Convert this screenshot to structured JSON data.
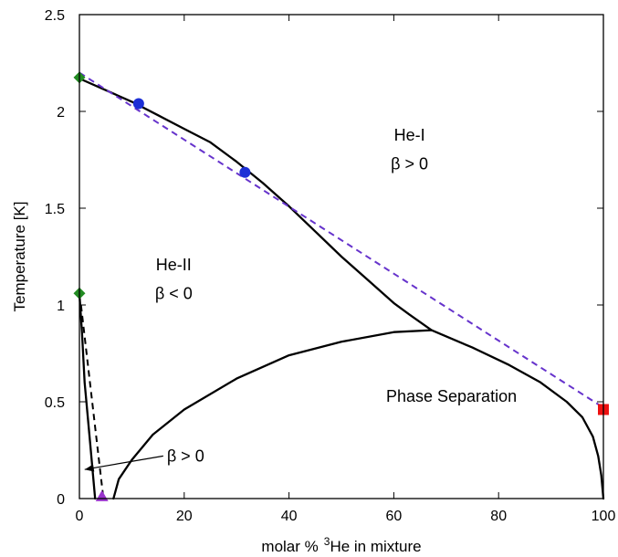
{
  "chart_data": {
    "type": "line",
    "xlabel_prefix": "molar %",
    "xlabel_sup": "3",
    "xlabel_suffix": "He in mixture",
    "ylabel": "Temperature [K]",
    "xlim": [
      0,
      100
    ],
    "ylim": [
      0,
      2.5
    ],
    "xticks": [
      0,
      20,
      40,
      60,
      80,
      100
    ],
    "yticks": [
      0,
      0.5,
      1,
      1.5,
      2,
      2.5
    ],
    "xtick_labels": [
      "0",
      "20",
      "40",
      "60",
      "80",
      "100"
    ],
    "ytick_labels": [
      "0",
      "0.5",
      "1",
      "1.5",
      "2",
      "2.5"
    ],
    "grid": false,
    "series": [
      {
        "style": "solid",
        "color": "#000000",
        "x": [
          0,
          5,
          10,
          15,
          20,
          25,
          30,
          35,
          40,
          45,
          50,
          55,
          60,
          63,
          67.2
        ],
        "y": [
          2.17,
          2.11,
          2.05,
          1.98,
          1.91,
          1.84,
          1.74,
          1.63,
          1.51,
          1.38,
          1.25,
          1.13,
          1.01,
          0.95,
          0.87
        ]
      },
      {
        "style": "solid",
        "color": "#000000",
        "x": [
          0,
          0.5,
          1,
          2,
          3
        ],
        "y": [
          1.06,
          0.85,
          0.6,
          0.3,
          0
        ]
      },
      {
        "style": "solid",
        "color": "#000000",
        "x": [
          6.5,
          7.5,
          10,
          14,
          20,
          30,
          40,
          50,
          60,
          67.2
        ],
        "y": [
          0,
          0.1,
          0.2,
          0.33,
          0.46,
          0.62,
          0.74,
          0.81,
          0.86,
          0.87
        ]
      },
      {
        "style": "solid",
        "color": "#000000",
        "x": [
          67.2,
          75,
          82,
          88,
          93,
          96,
          98,
          99,
          99.6,
          100
        ],
        "y": [
          0.87,
          0.78,
          0.69,
          0.6,
          0.5,
          0.42,
          0.32,
          0.22,
          0.12,
          0
        ]
      },
      {
        "style": "dashed",
        "color": "#6633cc",
        "x": [
          0,
          100
        ],
        "y": [
          2.2,
          0.47
        ]
      },
      {
        "style": "dashed",
        "color": "#000000",
        "x": [
          0.3,
          4.5
        ],
        "y": [
          1.0,
          0.02
        ]
      }
    ],
    "markers": [
      {
        "shape": "diamond",
        "color": "#228b22",
        "x": 0,
        "y": 2.175
      },
      {
        "shape": "diamond",
        "color": "#228b22",
        "x": 0,
        "y": 1.06
      },
      {
        "shape": "circle",
        "color": "#1c2fd6",
        "x": 11.3,
        "y": 2.04
      },
      {
        "shape": "circle",
        "color": "#1c2fd6",
        "x": 31.6,
        "y": 1.685
      },
      {
        "shape": "square",
        "color": "#ee1111",
        "x": 100,
        "y": 0.46
      },
      {
        "shape": "triangle",
        "color": "#9933cc",
        "x": 4.3,
        "y": 0.01
      }
    ],
    "arrow": {
      "from": [
        16,
        0.22
      ],
      "to": [
        1,
        0.15
      ],
      "label": "β > 0"
    },
    "annotations": [
      {
        "text": "He-I",
        "x": 63,
        "y": 1.85
      },
      {
        "text": "β > 0",
        "x": 63,
        "y": 1.7
      },
      {
        "text": "He-II",
        "x": 18,
        "y": 1.18
      },
      {
        "text": "β < 0",
        "x": 18,
        "y": 1.03
      },
      {
        "text": "Phase Separation",
        "x": 71,
        "y": 0.5
      }
    ]
  }
}
